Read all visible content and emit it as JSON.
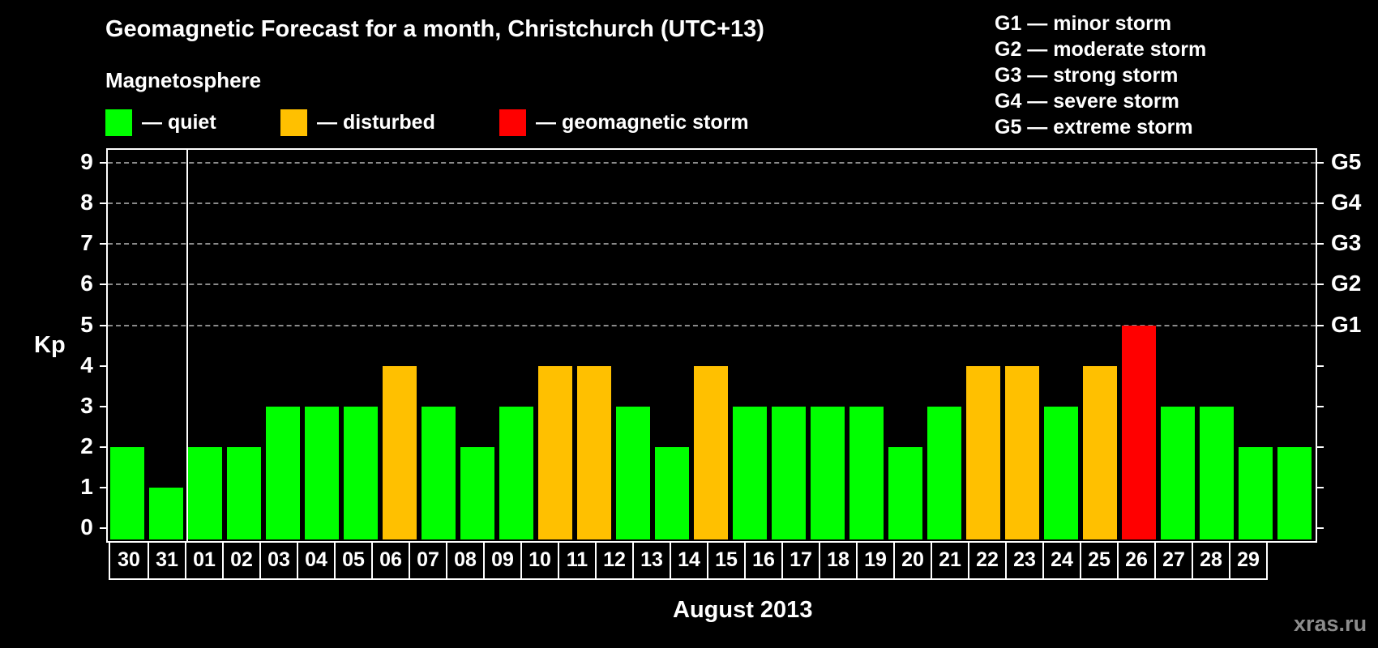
{
  "title": "Geomagnetic Forecast for a month, Christchurch (UTC+13)",
  "subtitle": "Magnetosphere",
  "legend": [
    {
      "label": "— quiet",
      "color": "#00ff00",
      "key": "quiet"
    },
    {
      "label": "— disturbed",
      "color": "#ffc000",
      "key": "disturbed"
    },
    {
      "label": "— geomagnetic storm",
      "color": "#ff0000",
      "key": "storm"
    }
  ],
  "g_scale": [
    {
      "label": "G1 — minor storm"
    },
    {
      "label": "G2 — moderate storm"
    },
    {
      "label": "G3 — strong storm"
    },
    {
      "label": "G4 — severe storm"
    },
    {
      "label": "G5 — extreme storm"
    }
  ],
  "y_axis_label": "Kp",
  "y_ticks": [
    "0",
    "1",
    "2",
    "3",
    "4",
    "5",
    "6",
    "7",
    "8",
    "9"
  ],
  "g_ticks": [
    {
      "kp": 5,
      "label": "G1"
    },
    {
      "kp": 6,
      "label": "G2"
    },
    {
      "kp": 7,
      "label": "G3"
    },
    {
      "kp": 8,
      "label": "G4"
    },
    {
      "kp": 9,
      "label": "G5"
    }
  ],
  "x_axis_title": "August 2013",
  "watermark": "xras.ru",
  "colors": {
    "quiet": "#00ff00",
    "disturbed": "#ffc000",
    "storm": "#ff0000",
    "background": "#000000",
    "grid": "#8a8a8a"
  },
  "chart_data": {
    "type": "bar",
    "title": "Geomagnetic Forecast for a month, Christchurch (UTC+13)",
    "subtitle": "Magnetosphere",
    "xlabel": "August 2013",
    "ylabel": "Kp",
    "ylim": [
      0,
      9
    ],
    "grid": true,
    "secondary_y_labels": {
      "5": "G1",
      "6": "G2",
      "7": "G3",
      "8": "G4",
      "9": "G5"
    },
    "categories": [
      "30",
      "31",
      "01",
      "02",
      "03",
      "04",
      "05",
      "06",
      "07",
      "08",
      "09",
      "10",
      "11",
      "12",
      "13",
      "14",
      "15",
      "16",
      "17",
      "18",
      "19",
      "20",
      "21",
      "22",
      "23",
      "24",
      "25",
      "26",
      "27",
      "28",
      "29"
    ],
    "values": [
      2,
      1,
      2,
      2,
      3,
      3,
      3,
      4,
      3,
      2,
      3,
      4,
      4,
      3,
      2,
      4,
      3,
      3,
      3,
      3,
      2,
      3,
      4,
      4,
      3,
      4,
      5,
      3,
      3,
      2,
      2
    ],
    "status": [
      "quiet",
      "quiet",
      "quiet",
      "quiet",
      "quiet",
      "quiet",
      "quiet",
      "disturbed",
      "quiet",
      "quiet",
      "quiet",
      "disturbed",
      "disturbed",
      "quiet",
      "quiet",
      "disturbed",
      "quiet",
      "quiet",
      "quiet",
      "quiet",
      "quiet",
      "quiet",
      "disturbed",
      "disturbed",
      "quiet",
      "disturbed",
      "storm",
      "quiet",
      "quiet",
      "quiet",
      "quiet"
    ],
    "legend": [
      "quiet",
      "disturbed",
      "geomagnetic storm"
    ],
    "legend_position": "top"
  }
}
